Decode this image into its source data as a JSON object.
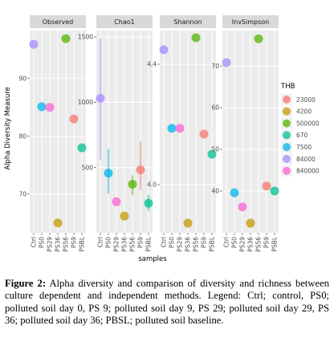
{
  "figure": {
    "y_label": "Alpha Diversity Measure",
    "x_label": "samples",
    "legend": {
      "title": "THB",
      "entries": [
        {
          "name": "23000",
          "color": "#F8766D"
        },
        {
          "name": "4200",
          "color": "#C49A00"
        },
        {
          "name": "500000",
          "color": "#53B400"
        },
        {
          "name": "670",
          "color": "#00C094"
        },
        {
          "name": "7500",
          "color": "#00B6EB"
        },
        {
          "name": "84000",
          "color": "#A58AFF"
        },
        {
          "name": "840000",
          "color": "#FB61D7"
        }
      ]
    }
  },
  "chart_data": [
    {
      "type": "scatter",
      "title": "Observed",
      "categories": [
        "Ctrl",
        "PS0",
        "PS29",
        "PS36",
        "PS56",
        "PS9",
        "PSBL"
      ],
      "values": [
        95.9,
        85.1,
        85,
        65,
        96.9,
        83,
        78
      ],
      "colors": [
        "#A58AFF",
        "#00B6EB",
        "#FB61D7",
        "#C49A00",
        "#53B400",
        "#F8766D",
        "#00C094"
      ],
      "ylim": [
        63.3,
        98.3
      ],
      "yticks": [
        70,
        80,
        90
      ],
      "grid": true
    },
    {
      "type": "scatter",
      "title": "Chao1",
      "categories": [
        "Ctrl",
        "PS0",
        "PS29",
        "PS36",
        "PS56",
        "PS9",
        "PSBL"
      ],
      "values": [
        1030,
        457,
        238,
        128,
        372,
        482,
        226
      ],
      "error_low": [
        560,
        300,
        null,
        null,
        290,
        330,
        170
      ],
      "error_high": [
        1490,
        640,
        null,
        null,
        440,
        700,
        290
      ],
      "colors": [
        "#A58AFF",
        "#00B6EB",
        "#FB61D7",
        "#C49A00",
        "#53B400",
        "#F8766D",
        "#00C094"
      ],
      "ylim": [
        0,
        1550
      ],
      "yticks": [
        500,
        1000,
        1500
      ],
      "grid": true
    },
    {
      "type": "scatter",
      "title": "Shannon",
      "categories": [
        "Ctrl",
        "PS0",
        "PS29",
        "PS36",
        "PS56",
        "PS9",
        "PSBL"
      ],
      "values": [
        4.448,
        4.187,
        4.187,
        3.872,
        4.488,
        4.168,
        4.101
      ],
      "colors": [
        "#A58AFF",
        "#00B6EB",
        "#FB61D7",
        "#C49A00",
        "#53B400",
        "#F8766D",
        "#00C094"
      ],
      "ylim": [
        3.84,
        4.512
      ],
      "yticks": [
        {
          "value": 4,
          "label": "4.0"
        },
        4.4
      ],
      "grid": true
    },
    {
      "type": "scatter",
      "title": "InvSimpson",
      "categories": [
        "Ctrl",
        "PS0",
        "PS29",
        "PS36",
        "PS56",
        "PS9",
        "PSBL"
      ],
      "values": [
        70.8,
        39.6,
        36.2,
        32.3,
        76.5,
        41.2,
        40
      ],
      "colors": [
        "#A58AFF",
        "#00B6EB",
        "#FB61D7",
        "#C49A00",
        "#53B400",
        "#F8766D",
        "#00C094"
      ],
      "ylim": [
        30,
        78.5
      ],
      "yticks": [
        40,
        50,
        60,
        70
      ],
      "grid": true
    }
  ],
  "caption": {
    "label": "Figure 2:",
    "text": "Alpha diversity and comparison of diversity and richness between culture dependent and independent methods. Legend: Ctrl; control, PS0; polluted soil day 0, PS 9; polluted soil day 9, PS 29; polluted soil day 29, PS 36; polluted soil day 36; PBSL; polluted soil baseline."
  }
}
